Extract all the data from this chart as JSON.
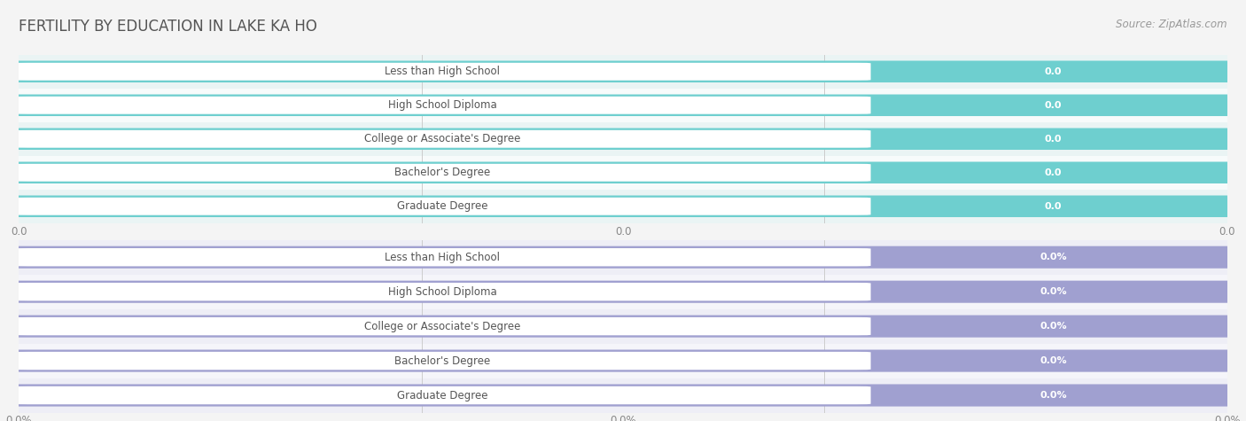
{
  "title": "FERTILITY BY EDUCATION IN LAKE KA HO",
  "source": "Source: ZipAtlas.com",
  "categories": [
    "Less than High School",
    "High School Diploma",
    "College or Associate's Degree",
    "Bachelor's Degree",
    "Graduate Degree"
  ],
  "top_values": [
    0.0,
    0.0,
    0.0,
    0.0,
    0.0
  ],
  "bottom_values": [
    0.0,
    0.0,
    0.0,
    0.0,
    0.0
  ],
  "top_bar_color": "#6ecfcf",
  "bottom_bar_color": "#a0a0d0",
  "top_row_bg_odd": "#eaf4f4",
  "top_row_bg_even": "#f7fbfb",
  "bottom_row_bg_odd": "#eeeef6",
  "bottom_row_bg_even": "#f5f5fa",
  "label_box_color": "#ffffff",
  "label_text_color": "#555555",
  "value_text_color": "#ffffff",
  "tick_color": "#888888",
  "title_color": "#555555",
  "source_color": "#999999",
  "grid_color": "#cccccc",
  "fig_bg": "#f4f4f4",
  "title_fontsize": 12,
  "label_fontsize": 8.5,
  "value_fontsize": 8.0,
  "tick_fontsize": 8.5,
  "source_fontsize": 8.5
}
